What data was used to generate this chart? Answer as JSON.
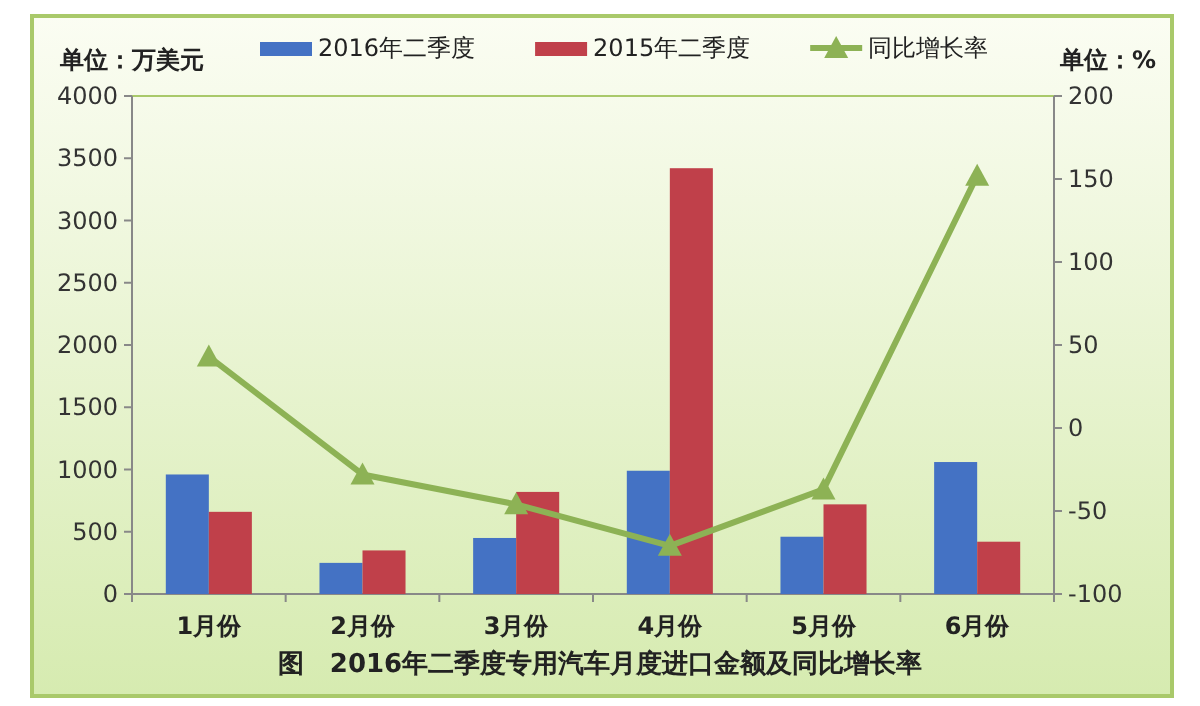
{
  "chart_data": {
    "type": "bar",
    "title": "图　2016年二季度专用汽车月度进口金额及同比增长率",
    "ylabel": "单位：万美元",
    "y2label": "单位：%",
    "categories": [
      "1月份",
      "2月份",
      "3月份",
      "4月份",
      "5月份",
      "6月份"
    ],
    "series": [
      {
        "name": "2016年二季度",
        "color": "#4472c4",
        "values": [
          960,
          250,
          450,
          990,
          460,
          1060
        ]
      },
      {
        "name": "2015年二季度",
        "color": "#c0404a",
        "values": [
          660,
          350,
          820,
          3420,
          720,
          420
        ]
      },
      {
        "name": "同比增长率",
        "type": "line",
        "axis": "y2",
        "color": "#8db255",
        "marker": "triangle",
        "values": [
          43,
          -28,
          -46,
          -71,
          -37,
          152
        ]
      }
    ],
    "ylim": [
      0,
      4000
    ],
    "yticks": [
      0,
      500,
      1000,
      1500,
      2000,
      2500,
      3000,
      3500,
      4000
    ],
    "y2lim": [
      -100,
      200
    ],
    "y2ticks": [
      -100,
      -50,
      0,
      50,
      100,
      150,
      200
    ],
    "legend": "top",
    "grid": false
  }
}
